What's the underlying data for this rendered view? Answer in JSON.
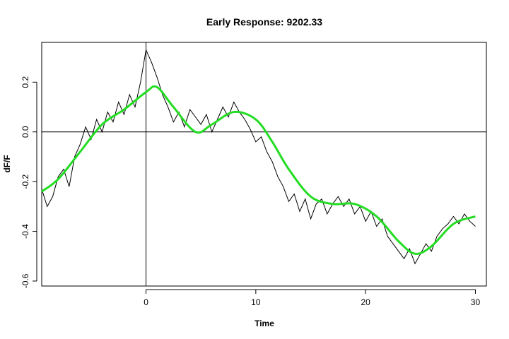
{
  "chart_data": {
    "type": "line",
    "title": "Early Response: 9202.33",
    "xlabel": "Time",
    "ylabel": "dF/F",
    "xlim": [
      -9.5,
      31.0
    ],
    "ylim": [
      -0.62,
      0.36
    ],
    "x_ticks": [
      0,
      10,
      20,
      30
    ],
    "y_ticks": [
      -0.6,
      -0.4,
      -0.2,
      0.0,
      0.2
    ],
    "x_tick_labels": [
      "0",
      "10",
      "20",
      "30"
    ],
    "y_tick_labels": [
      "-0.6",
      "-0.4",
      "-0.2",
      "0.0",
      "0.2"
    ],
    "reference_lines": {
      "vertical_x": 0,
      "horizontal_y": 0
    },
    "grid": false,
    "legend": "none",
    "series": [
      {
        "style": "raw",
        "color": "#000000",
        "x": [
          -9.5,
          -9.0,
          -8.5,
          -8.0,
          -7.5,
          -7.0,
          -6.5,
          -6.0,
          -5.5,
          -5.0,
          -4.5,
          -4.0,
          -3.5,
          -3.0,
          -2.5,
          -2.0,
          -1.5,
          -1.0,
          -0.5,
          0.0,
          0.5,
          1.0,
          1.5,
          2.0,
          2.5,
          3.0,
          3.5,
          4.0,
          4.5,
          5.0,
          5.5,
          6.0,
          6.5,
          7.0,
          7.5,
          8.0,
          8.5,
          9.0,
          9.5,
          10.0,
          10.5,
          11.0,
          11.5,
          12.0,
          12.5,
          13.0,
          13.5,
          14.0,
          14.5,
          15.0,
          15.5,
          16.0,
          16.5,
          17.0,
          17.5,
          18.0,
          18.5,
          19.0,
          19.5,
          20.0,
          20.5,
          21.0,
          21.5,
          22.0,
          22.5,
          23.0,
          23.5,
          24.0,
          24.5,
          25.0,
          25.5,
          26.0,
          26.5,
          27.0,
          27.5,
          28.0,
          28.5,
          29.0,
          29.5,
          30.0
        ],
        "y": [
          -0.23,
          -0.3,
          -0.26,
          -0.18,
          -0.15,
          -0.22,
          -0.1,
          -0.05,
          0.02,
          -0.03,
          0.05,
          0.0,
          0.08,
          0.04,
          0.12,
          0.07,
          0.15,
          0.1,
          0.2,
          0.33,
          0.28,
          0.22,
          0.15,
          0.1,
          0.04,
          0.08,
          0.02,
          0.09,
          0.06,
          0.03,
          0.07,
          0.0,
          0.05,
          0.1,
          0.06,
          0.12,
          0.08,
          0.05,
          0.01,
          -0.04,
          -0.02,
          -0.08,
          -0.12,
          -0.18,
          -0.22,
          -0.28,
          -0.25,
          -0.32,
          -0.27,
          -0.35,
          -0.29,
          -0.27,
          -0.33,
          -0.29,
          -0.26,
          -0.3,
          -0.27,
          -0.33,
          -0.3,
          -0.36,
          -0.32,
          -0.38,
          -0.35,
          -0.42,
          -0.45,
          -0.48,
          -0.51,
          -0.47,
          -0.53,
          -0.49,
          -0.45,
          -0.48,
          -0.42,
          -0.39,
          -0.37,
          -0.34,
          -0.37,
          -0.33,
          -0.36,
          -0.38
        ]
      },
      {
        "style": "smoothed",
        "color": "#22dd22",
        "x": [
          -9.5,
          -8.0,
          -6.0,
          -4.0,
          -2.0,
          0.0,
          1.0,
          2.5,
          4.5,
          6.0,
          8.0,
          10.0,
          11.5,
          13.0,
          15.0,
          17.0,
          19.0,
          21.0,
          23.0,
          24.5,
          26.0,
          28.0,
          30.0
        ],
        "y": [
          -0.24,
          -0.19,
          -0.08,
          0.03,
          0.09,
          0.16,
          0.18,
          0.1,
          0.0,
          0.03,
          0.08,
          0.05,
          -0.04,
          -0.15,
          -0.26,
          -0.29,
          -0.29,
          -0.34,
          -0.44,
          -0.49,
          -0.46,
          -0.37,
          -0.34
        ]
      }
    ]
  }
}
